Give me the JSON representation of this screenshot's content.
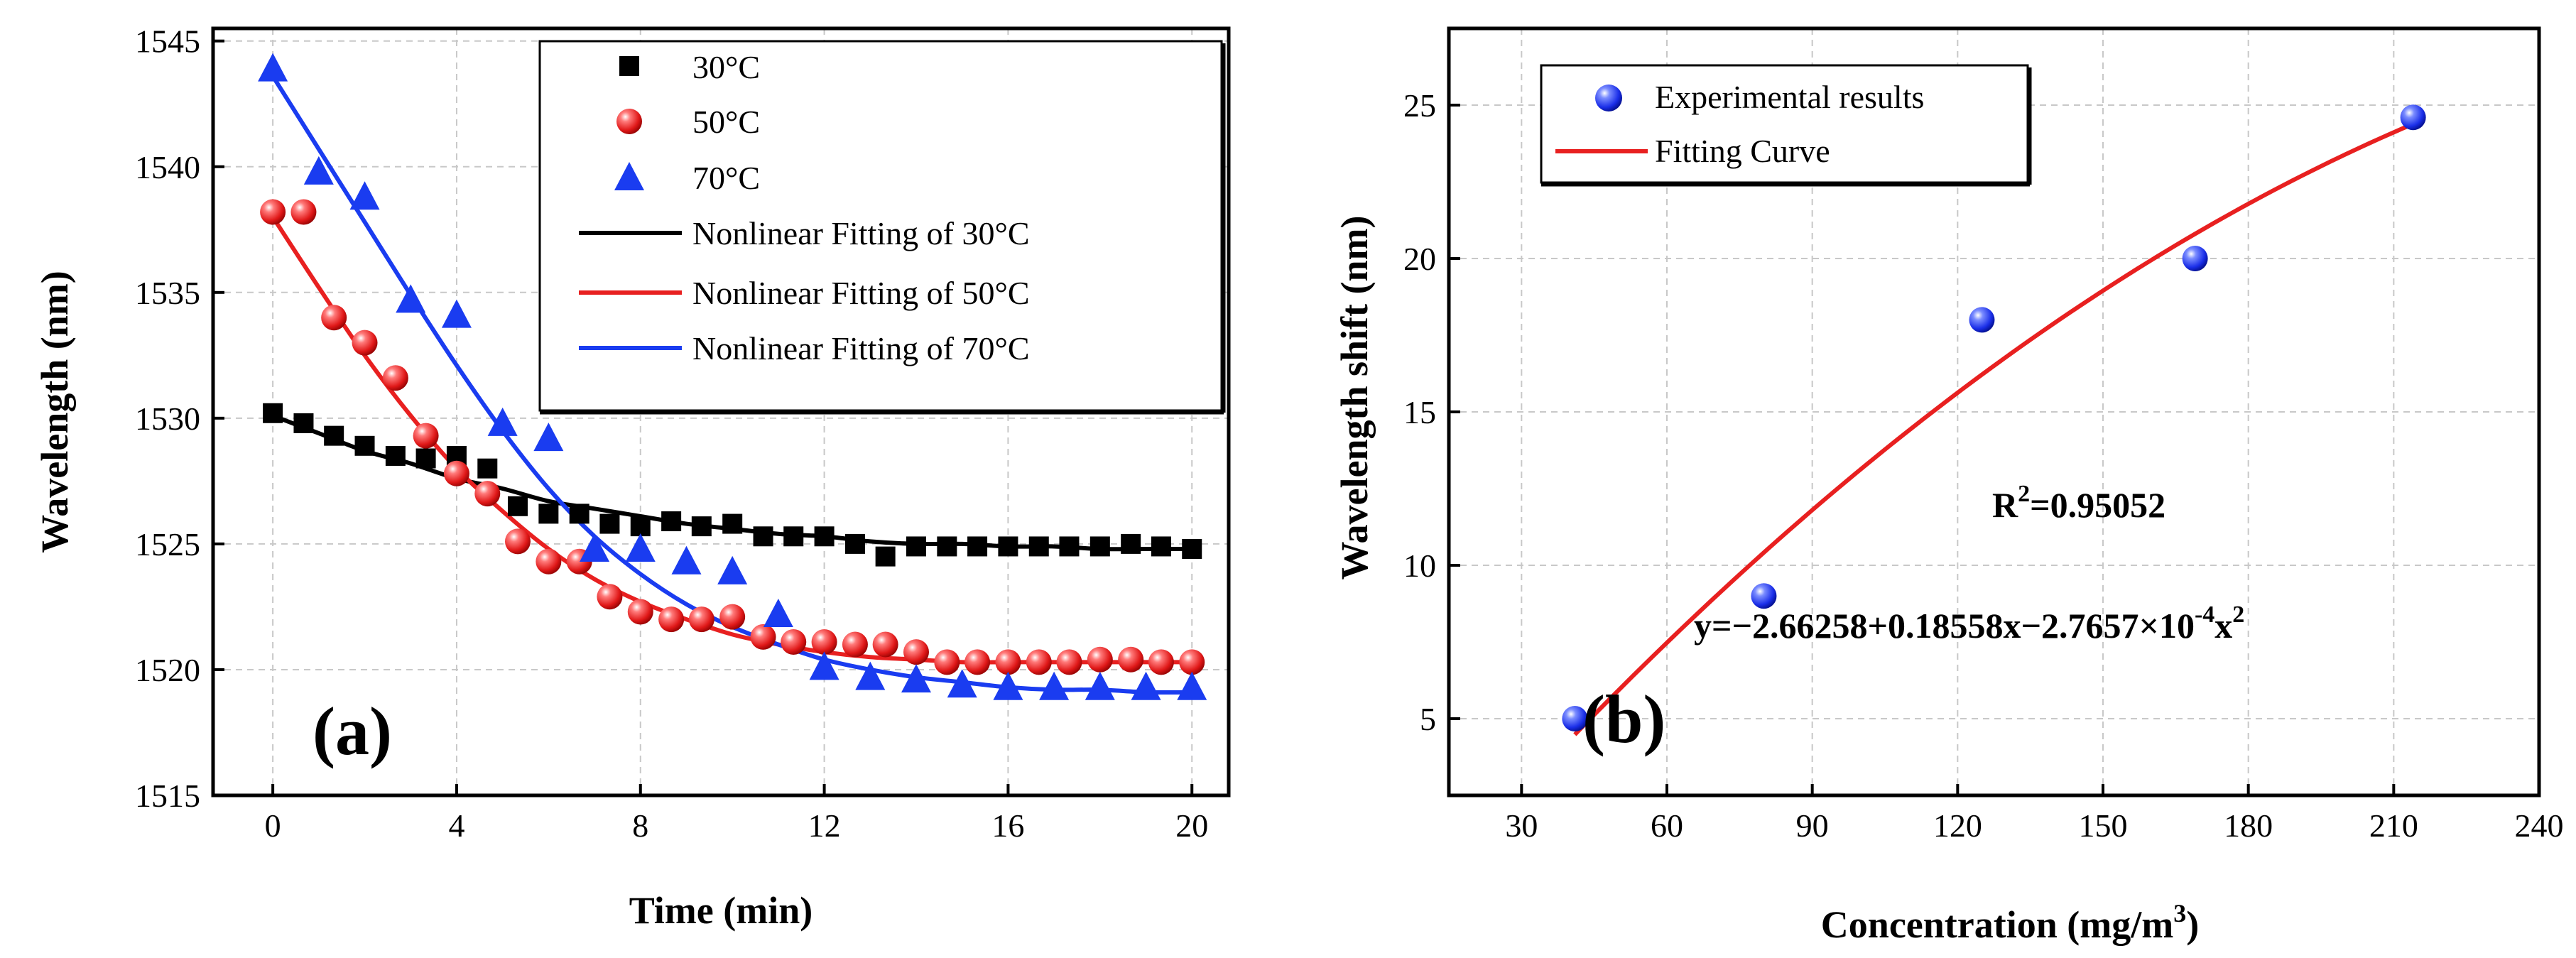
{
  "chart_data": [
    {
      "type": "scatter",
      "panel_label": "(a)",
      "title": "",
      "xlabel": "Time (min)",
      "ylabel": "Wavelength (nm)",
      "xlim": [
        -1.3,
        20.8
      ],
      "ylim": [
        1515,
        1545.5
      ],
      "xticks": [
        0,
        4,
        8,
        12,
        16,
        20
      ],
      "yticks": [
        1515,
        1520,
        1525,
        1530,
        1535,
        1540,
        1545
      ],
      "grid": true,
      "legend_position": "top-right",
      "series": [
        {
          "name": "30°C",
          "kind": "points",
          "marker": "square",
          "color": "#000000",
          "x": [
            0,
            0.67,
            1.33,
            2,
            2.67,
            3.33,
            4,
            4.67,
            5.33,
            6,
            6.67,
            7.33,
            8,
            8.67,
            9.33,
            10,
            10.67,
            11.33,
            12,
            12.67,
            13.33,
            14,
            14.67,
            15.33,
            16,
            16.67,
            17.33,
            18,
            18.67,
            19.33,
            20
          ],
          "y": [
            1530.2,
            1529.8,
            1529.3,
            1528.9,
            1528.5,
            1528.4,
            1528.5,
            1528.0,
            1526.5,
            1526.2,
            1526.2,
            1525.8,
            1525.7,
            1525.9,
            1525.7,
            1525.8,
            1525.3,
            1525.3,
            1525.3,
            1525.0,
            1524.5,
            1524.9,
            1524.9,
            1524.9,
            1524.9,
            1524.9,
            1524.9,
            1524.9,
            1525.0,
            1524.9,
            1524.8
          ]
        },
        {
          "name": "50°C",
          "kind": "points",
          "marker": "sphere",
          "color": "#e82020",
          "x": [
            0,
            0.67,
            1.33,
            2,
            2.67,
            3.33,
            4,
            4.67,
            5.33,
            6,
            6.67,
            7.33,
            8,
            8.67,
            9.33,
            10,
            10.67,
            11.33,
            12,
            12.67,
            13.33,
            14,
            14.67,
            15.33,
            16,
            16.67,
            17.33,
            18,
            18.67,
            19.33,
            20
          ],
          "y": [
            1538.2,
            1538.2,
            1534.0,
            1533.0,
            1531.6,
            1529.3,
            1527.8,
            1527.0,
            1525.1,
            1524.3,
            1524.3,
            1522.9,
            1522.3,
            1522.0,
            1522.0,
            1522.1,
            1521.3,
            1521.1,
            1521.1,
            1521.0,
            1521.0,
            1520.7,
            1520.3,
            1520.3,
            1520.3,
            1520.3,
            1520.3,
            1520.4,
            1520.4,
            1520.3,
            1520.3
          ]
        },
        {
          "name": "70°C",
          "kind": "points",
          "marker": "triangle",
          "color": "#1a3cf0",
          "x": [
            0,
            1,
            2,
            3,
            4,
            5,
            6,
            7,
            8,
            9,
            10,
            11,
            12,
            13,
            14,
            15,
            16,
            17,
            18,
            19,
            20
          ],
          "y": [
            1543.9,
            1539.8,
            1538.8,
            1534.7,
            1534.1,
            1529.8,
            1529.2,
            1524.8,
            1524.8,
            1524.3,
            1523.9,
            1522.2,
            1520.1,
            1519.7,
            1519.6,
            1519.4,
            1519.3,
            1519.3,
            1519.3,
            1519.3,
            1519.3
          ]
        },
        {
          "name": "Nonlinear Fitting of  30°C",
          "kind": "line",
          "color": "#000000",
          "x": [
            0,
            1,
            2,
            3,
            4,
            5,
            6,
            7,
            8,
            9,
            10,
            11,
            12,
            13,
            14,
            15,
            16,
            17,
            18,
            19,
            20
          ],
          "y": [
            1530.1,
            1529.4,
            1528.7,
            1528.2,
            1527.6,
            1527.2,
            1526.7,
            1526.4,
            1526.1,
            1525.8,
            1525.6,
            1525.4,
            1525.3,
            1525.1,
            1525.0,
            1525.0,
            1524.9,
            1524.9,
            1524.8,
            1524.8,
            1524.8
          ]
        },
        {
          "name": "Nonlinear Fitting of  50°C",
          "kind": "line",
          "color": "#e82020",
          "x": [
            0,
            1,
            2,
            3,
            4,
            5,
            6,
            7,
            8,
            9,
            10,
            11,
            12,
            13,
            14,
            15,
            16,
            17,
            18,
            19,
            20
          ],
          "y": [
            1538.0,
            1535.2,
            1532.5,
            1530.1,
            1528.0,
            1526.3,
            1524.8,
            1523.6,
            1522.7,
            1522.0,
            1521.4,
            1521.0,
            1520.7,
            1520.5,
            1520.4,
            1520.3,
            1520.3,
            1520.3,
            1520.3,
            1520.3,
            1520.3
          ]
        },
        {
          "name": "Nonlinear Fitting of  70°C",
          "kind": "line",
          "color": "#1a3cf0",
          "x": [
            0,
            1,
            2,
            3,
            4,
            5,
            6,
            7,
            8,
            9,
            10,
            11,
            12,
            13,
            14,
            15,
            16,
            17,
            18,
            19,
            20
          ],
          "y": [
            1543.6,
            1540.7,
            1537.8,
            1534.9,
            1532.1,
            1529.5,
            1527.2,
            1525.3,
            1523.8,
            1522.6,
            1521.7,
            1521.0,
            1520.4,
            1520.0,
            1519.7,
            1519.5,
            1519.3,
            1519.2,
            1519.2,
            1519.1,
            1519.1
          ]
        }
      ]
    },
    {
      "type": "scatter",
      "panel_label": "(b)",
      "title": "",
      "xlabel": "Concentration (mg/m",
      "xlabel_sup": "3",
      "xlabel_end": ")",
      "ylabel": "Wavelength shift (nm)",
      "xlim": [
        15,
        240
      ],
      "ylim": [
        2.5,
        27.5
      ],
      "xticks": [
        30,
        60,
        90,
        120,
        150,
        180,
        210,
        240
      ],
      "yticks": [
        5,
        10,
        15,
        20,
        25
      ],
      "grid": true,
      "legend_position": "top-left",
      "series": [
        {
          "name": "Experimental results",
          "kind": "points",
          "marker": "sphere",
          "color": "#1a3cf0",
          "x": [
            41,
            80,
            125,
            169,
            214
          ],
          "y": [
            5.0,
            9.0,
            18.0,
            20.0,
            24.6
          ]
        },
        {
          "name": "Fitting Curve",
          "kind": "line",
          "color": "#e82020",
          "fit": {
            "a": -2.66258,
            "b": 0.18558,
            "c": -0.00027657,
            "x_from": 41,
            "x_to": 214
          }
        }
      ],
      "annotations": {
        "r2_base": "R",
        "r2_sup": "2",
        "r2_rest": "=0.95052",
        "eq_main": "y=−2.66258+0.18558x−2.7657×10",
        "eq_sup1": "-4",
        "eq_x": "x",
        "eq_sup2": "2"
      }
    }
  ]
}
